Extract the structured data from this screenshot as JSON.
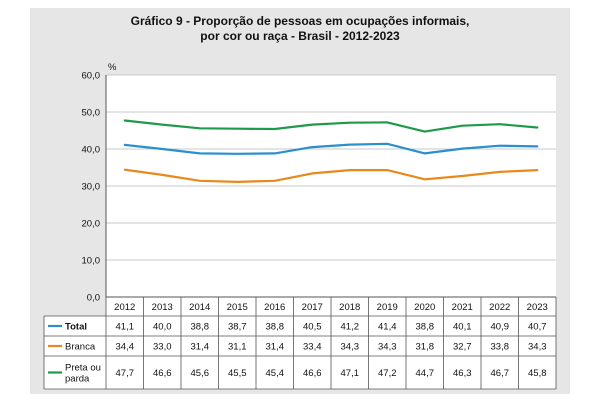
{
  "chart_data": {
    "type": "line",
    "title_lines": [
      "Gráfico 9 - Proporção de pessoas em ocupações informais,",
      "por cor ou raça - Brasil - 2012-2023"
    ],
    "unit_label": "%",
    "categories": [
      "2012",
      "2013",
      "2014",
      "2015",
      "2016",
      "2017",
      "2018",
      "2019",
      "2020",
      "2021",
      "2022",
      "2023"
    ],
    "ylim": [
      0,
      60
    ],
    "yticks": [
      "0,0",
      "10,0",
      "20,0",
      "30,0",
      "40,0",
      "50,0",
      "60,0"
    ],
    "grid": true,
    "legend": "table-below",
    "series": [
      {
        "name": "Total",
        "color": "#2a8fd0",
        "bold": true,
        "values": [
          41.1,
          40.0,
          38.8,
          38.7,
          38.8,
          40.5,
          41.2,
          41.4,
          38.8,
          40.1,
          40.9,
          40.7
        ],
        "labels": [
          "41,1",
          "40,0",
          "38,8",
          "38,7",
          "38,8",
          "40,5",
          "41,2",
          "41,4",
          "38,8",
          "40,1",
          "40,9",
          "40,7"
        ]
      },
      {
        "name": "Branca",
        "color": "#e8891c",
        "bold": false,
        "values": [
          34.4,
          33.0,
          31.4,
          31.1,
          31.4,
          33.4,
          34.3,
          34.3,
          31.8,
          32.7,
          33.8,
          34.3
        ],
        "labels": [
          "34,4",
          "33,0",
          "31,4",
          "31,1",
          "31,4",
          "33,4",
          "34,3",
          "34,3",
          "31,8",
          "32,7",
          "33,8",
          "34,3"
        ]
      },
      {
        "name": "Preta ou parda",
        "name_lines": [
          "Preta ou",
          "parda"
        ],
        "color": "#1f9a4a",
        "bold": false,
        "values": [
          47.7,
          46.6,
          45.6,
          45.5,
          45.4,
          46.6,
          47.1,
          47.2,
          44.7,
          46.3,
          46.7,
          45.8
        ],
        "labels": [
          "47,7",
          "46,6",
          "45,6",
          "45,5",
          "45,4",
          "46,6",
          "47,1",
          "47,2",
          "44,7",
          "46,3",
          "46,7",
          "45,8"
        ]
      }
    ]
  }
}
